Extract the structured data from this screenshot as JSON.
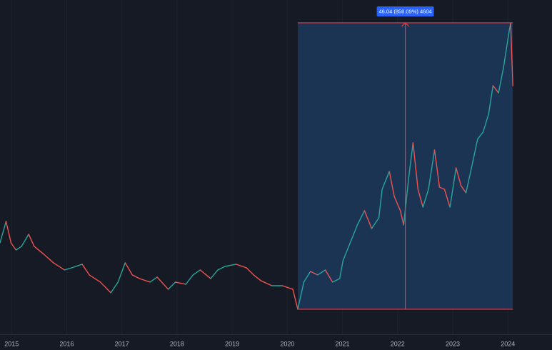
{
  "chart_data": {
    "type": "line",
    "x": [
      2014.79,
      2014.9,
      2014.99,
      2015.08,
      2015.18,
      2015.31,
      2015.41,
      2015.57,
      2015.76,
      2015.96,
      2016.09,
      2016.28,
      2016.41,
      2016.61,
      2016.8,
      2016.93,
      2017.06,
      2017.19,
      2017.32,
      2017.51,
      2017.64,
      2017.84,
      2017.97,
      2018.16,
      2018.29,
      2018.42,
      2018.61,
      2018.74,
      2018.87,
      2019.07,
      2019.26,
      2019.39,
      2019.52,
      2019.72,
      2019.91,
      2020.1,
      2020.19,
      2020.3,
      2020.42,
      2020.55,
      2020.69,
      2020.82,
      2020.95,
      2021.01,
      2021.14,
      2021.27,
      2021.4,
      2021.53,
      2021.66,
      2021.72,
      2021.85,
      2021.94,
      2022.05,
      2022.11,
      2022.2,
      2022.28,
      2022.37,
      2022.46,
      2022.56,
      2022.67,
      2022.76,
      2022.85,
      2022.95,
      2023.06,
      2023.15,
      2023.24,
      2023.34,
      2023.45,
      2023.55,
      2023.65,
      2023.73,
      2023.83,
      2023.92,
      2024.02,
      2024.05,
      2024.09
    ],
    "values": [
      16.04,
      19.49,
      16.04,
      14.89,
      15.47,
      17.42,
      15.47,
      14.32,
      12.83,
      11.68,
      12.02,
      12.6,
      10.88,
      9.73,
      8.01,
      9.73,
      12.83,
      10.88,
      10.3,
      9.73,
      10.53,
      8.58,
      9.73,
      9.38,
      10.88,
      11.68,
      10.3,
      11.68,
      12.25,
      12.6,
      12.02,
      10.88,
      9.96,
      9.15,
      9.15,
      8.58,
      5.37,
      9.73,
      11.45,
      10.88,
      11.68,
      9.73,
      10.3,
      13.17,
      16.04,
      18.91,
      21.21,
      18.34,
      20.06,
      24.65,
      27.52,
      23.5,
      21.21,
      18.91,
      26.38,
      32.12,
      24.65,
      21.78,
      24.65,
      30.97,
      25.0,
      24.65,
      21.78,
      28.1,
      25.23,
      24.08,
      28.1,
      32.69,
      33.84,
      36.71,
      41.3,
      40.15,
      44.17,
      49.91,
      51.41,
      41.3
    ],
    "up_color": "#26a69a",
    "down_color": "#ef5350",
    "xlim": [
      2014.79,
      2024.8
    ],
    "xticks": [
      2015,
      2016,
      2017,
      2018,
      2019,
      2020,
      2021,
      2022,
      2023,
      2024
    ],
    "ylim": [
      2.03,
      55.08
    ],
    "grid": true,
    "measure": {
      "label": "46.04 (858.09%) 4604",
      "x": [
        2020.19,
        2024.09
      ],
      "y": [
        5.37,
        51.41
      ],
      "color": "#f23645",
      "fill": "#1b3454",
      "label_color": "#2962ff"
    }
  }
}
